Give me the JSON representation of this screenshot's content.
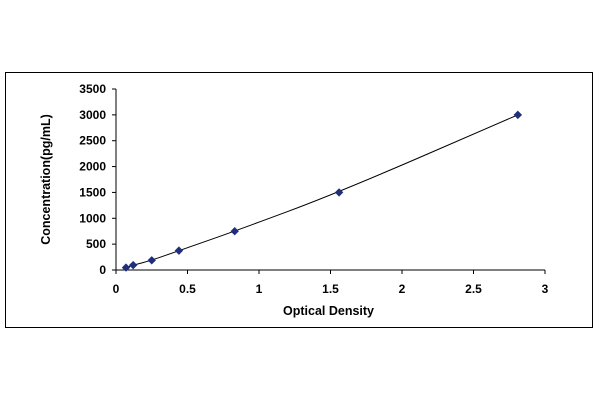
{
  "chart_data": {
    "type": "scatter",
    "title": "",
    "xlabel": "Optical Density",
    "ylabel": "Concentration(pg/mL)",
    "xlim": [
      0,
      3
    ],
    "ylim": [
      0,
      3500
    ],
    "x_ticks": [
      "0",
      "0.5",
      "1",
      "1.5",
      "2",
      "2.5",
      "3"
    ],
    "y_ticks": [
      "0",
      "500",
      "1000",
      "1500",
      "2000",
      "2500",
      "3000",
      "3500"
    ],
    "grid": false,
    "legend": "none",
    "marker": "diamond",
    "marker_color": "#1f2f7a",
    "line_color": "#000000",
    "trendline": true,
    "series": [
      {
        "x": [
          0.07,
          0.12,
          0.25,
          0.44,
          0.83,
          1.56,
          2.81
        ],
        "y": [
          46.875,
          93.75,
          187.5,
          375,
          750,
          1500,
          3000
        ]
      }
    ]
  }
}
